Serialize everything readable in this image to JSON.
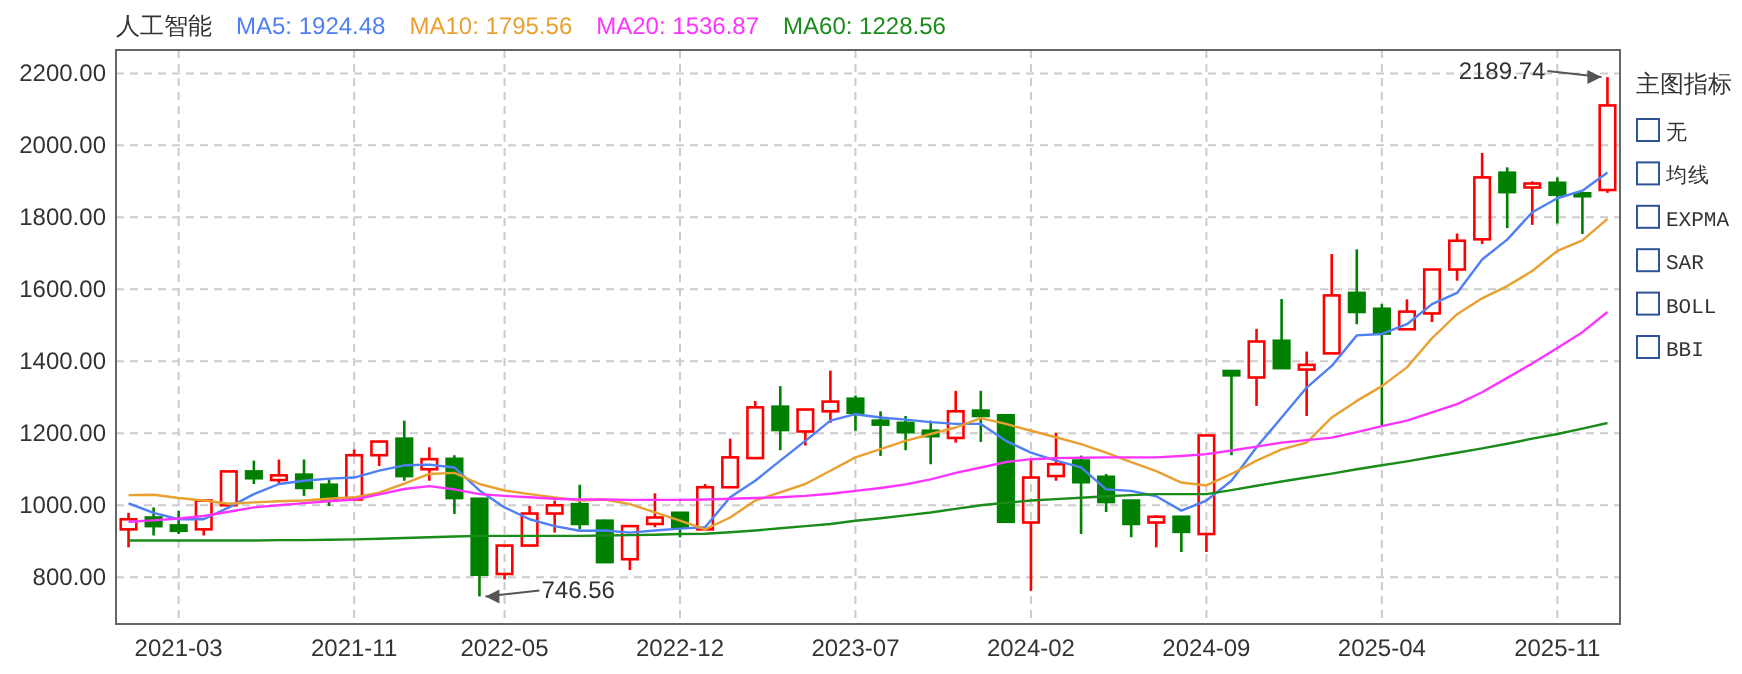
{
  "chart_data": [
    {
      "type": "candlestick",
      "title": "人工智能",
      "categories": [
        null,
        null,
        "2021-03",
        null,
        null,
        null,
        null,
        null,
        null,
        "2021-11",
        null,
        null,
        null,
        null,
        null,
        "2022-05",
        null,
        null,
        null,
        null,
        null,
        null,
        "2022-12",
        null,
        null,
        null,
        null,
        null,
        null,
        "2023-07",
        null,
        null,
        null,
        null,
        null,
        null,
        "2024-02",
        null,
        null,
        null,
        null,
        null,
        null,
        "2024-09",
        null,
        null,
        null,
        null,
        null,
        null,
        "2025-04",
        null,
        null,
        null,
        null,
        null,
        null,
        "2025-11",
        null,
        null
      ],
      "ohlc": [
        [
          933,
          979,
          883,
          961
        ],
        [
          966,
          994,
          916,
          942
        ],
        [
          944,
          985,
          920,
          929
        ],
        [
          933,
          1015,
          916,
          1013
        ],
        [
          1000,
          1094,
          994,
          1094
        ],
        [
          1094,
          1124,
          1059,
          1075
        ],
        [
          1070,
          1127,
          1061,
          1083
        ],
        [
          1085,
          1127,
          1026,
          1048
        ],
        [
          1057,
          1072,
          998,
          1016
        ],
        [
          1016,
          1155,
          1013,
          1139
        ],
        [
          1139,
          1177,
          1109,
          1177
        ],
        [
          1185,
          1235,
          1068,
          1081
        ],
        [
          1100,
          1161,
          1068,
          1128
        ],
        [
          1129,
          1139,
          976,
          1020
        ],
        [
          1018,
          1018,
          746.56,
          807
        ],
        [
          809,
          888,
          794,
          888
        ],
        [
          888,
          998,
          888,
          977
        ],
        [
          977,
          1013,
          924,
          1000
        ],
        [
          1003,
          1057,
          933,
          948
        ],
        [
          957,
          960,
          842,
          842
        ],
        [
          850,
          942,
          820,
          942
        ],
        [
          948,
          1033,
          939,
          966
        ],
        [
          979,
          979,
          911,
          939
        ],
        [
          933,
          1059,
          933,
          1050
        ],
        [
          1050,
          1185,
          1050,
          1133
        ],
        [
          1131,
          1290,
          1128,
          1272
        ],
        [
          1274,
          1331,
          1153,
          1209
        ],
        [
          1205,
          1266,
          1166,
          1266
        ],
        [
          1261,
          1374,
          1229,
          1288
        ],
        [
          1296,
          1305,
          1207,
          1257
        ],
        [
          1235,
          1261,
          1137,
          1224
        ],
        [
          1229,
          1248,
          1153,
          1203
        ],
        [
          1207,
          1235,
          1114,
          1192
        ],
        [
          1187,
          1318,
          1174,
          1261
        ],
        [
          1263,
          1318,
          1176,
          1248
        ],
        [
          1250,
          1253,
          954,
          954
        ],
        [
          952,
          1129,
          762,
          1077
        ],
        [
          1081,
          1201,
          1068,
          1114
        ],
        [
          1124,
          1138,
          920,
          1064
        ],
        [
          1079,
          1087,
          981,
          1009
        ],
        [
          1013,
          1013,
          911,
          948
        ],
        [
          952,
          972,
          883,
          968
        ],
        [
          968,
          968,
          870,
          926
        ],
        [
          920,
          1194,
          870,
          1194
        ],
        [
          1373,
          1373,
          1139,
          1361
        ],
        [
          1355,
          1490,
          1276,
          1455
        ],
        [
          1457,
          1573,
          1381,
          1381
        ],
        [
          1377,
          1427,
          1248,
          1390
        ],
        [
          1422,
          1698,
          1422,
          1583
        ],
        [
          1590,
          1711,
          1503,
          1537
        ],
        [
          1546,
          1559,
          1220,
          1477
        ],
        [
          1489,
          1572,
          1489,
          1538
        ],
        [
          1533,
          1655,
          1509,
          1655
        ],
        [
          1655,
          1755,
          1624,
          1735
        ],
        [
          1739,
          1979,
          1726,
          1911
        ],
        [
          1924,
          1939,
          1770,
          1870
        ],
        [
          1883,
          1900,
          1779,
          1894
        ],
        [
          1896,
          1911,
          1783,
          1863
        ],
        [
          1867,
          1867,
          1754,
          1865
        ],
        [
          1876,
          2189.74,
          1868,
          2111
        ]
      ],
      "colors": [
        "#ff0000",
        "#008000",
        "#008000",
        "#ff0000",
        "#ff0000",
        "#008000",
        "#ff0000",
        "#008000",
        "#008000",
        "#ff0000",
        "#ff0000",
        "#008000",
        "#ff0000",
        "#008000",
        "#008000",
        "#ff0000",
        "#ff0000",
        "#ff0000",
        "#008000",
        "#008000",
        "#ff0000",
        "#ff0000",
        "#008000",
        "#ff0000",
        "#ff0000",
        "#ff0000",
        "#008000",
        "#ff0000",
        "#ff0000",
        "#008000",
        "#008000",
        "#008000",
        "#008000",
        "#ff0000",
        "#008000",
        "#008000",
        "#ff0000",
        "#ff0000",
        "#008000",
        "#008000",
        "#008000",
        "#ff0000",
        "#008000",
        "#ff0000",
        "#008000",
        "#ff0000",
        "#008000",
        "#ff0000",
        "#ff0000",
        "#008000",
        "#008000",
        "#ff0000",
        "#ff0000",
        "#ff0000",
        "#ff0000",
        "#008000",
        "#ff0000",
        "#008000",
        "#008000",
        "#ff0000"
      ],
      "series": [
        {
          "type": "line",
          "name": "MA5: 1924.48",
          "color": "#4f7ff5",
          "values": [
            1005,
            979,
            961,
            961,
            994,
            1031,
            1059,
            1068,
            1074,
            1077,
            1096,
            1111,
            1113,
            1105,
            1041,
            994,
            961,
            942,
            929,
            930,
            924,
            930,
            935,
            939,
            1022,
            1068,
            1124,
            1179,
            1235,
            1253,
            1244,
            1238,
            1231,
            1226,
            1226,
            1179,
            1146,
            1124,
            1105,
            1044,
            1040,
            1025,
            985,
            1013,
            1068,
            1161,
            1244,
            1327,
            1387,
            1472,
            1476,
            1503,
            1559,
            1590,
            1683,
            1738,
            1814,
            1853,
            1874,
            1924.48
          ]
        },
        {
          "type": "line",
          "name": "MA10: 1795.56",
          "color": "#e8a030",
          "values": [
            1028,
            1029,
            1020,
            1013,
            1004,
            1008,
            1011,
            1013,
            1018,
            1022,
            1035,
            1060,
            1087,
            1090,
            1059,
            1041,
            1031,
            1022,
            1013,
            1016,
            1003,
            980,
            957,
            933,
            966,
            1013,
            1036,
            1059,
            1096,
            1133,
            1156,
            1179,
            1198,
            1216,
            1242,
            1226,
            1207,
            1189,
            1170,
            1146,
            1120,
            1095,
            1063,
            1055,
            1087,
            1124,
            1155,
            1174,
            1244,
            1290,
            1331,
            1383,
            1464,
            1531,
            1575,
            1609,
            1651,
            1707,
            1736,
            1795.56
          ]
        },
        {
          "type": "line",
          "name": "MA20: 1536.87",
          "color": "#ff33ff",
          "values": [
            954,
            958,
            963,
            970,
            982,
            994,
            1000,
            1006,
            1011,
            1016,
            1030,
            1045,
            1053,
            1044,
            1031,
            1026,
            1022,
            1018,
            1016,
            1016,
            1015,
            1015,
            1015,
            1016,
            1018,
            1020,
            1022,
            1026,
            1032,
            1040,
            1048,
            1058,
            1072,
            1090,
            1105,
            1120,
            1128,
            1131,
            1132,
            1133,
            1133,
            1133,
            1137,
            1142,
            1152,
            1163,
            1174,
            1181,
            1188,
            1203,
            1220,
            1235,
            1258,
            1281,
            1314,
            1354,
            1394,
            1437,
            1481,
            1536.87
          ]
        },
        {
          "type": "line",
          "name": "MA60: 1228.56",
          "color": "#1a8c1a",
          "values": [
            902,
            902,
            902,
            902,
            902,
            902,
            903,
            903,
            904,
            905,
            907,
            909,
            911,
            913,
            915,
            915,
            915,
            915,
            915,
            916,
            917,
            918,
            920,
            921,
            925,
            930,
            936,
            942,
            948,
            957,
            964,
            972,
            980,
            990,
            1000,
            1007,
            1013,
            1017,
            1021,
            1025,
            1028,
            1031,
            1031,
            1031,
            1042,
            1054,
            1066,
            1077,
            1088,
            1100,
            1111,
            1122,
            1134,
            1146,
            1158,
            1171,
            1185,
            1198,
            1213,
            1228.56
          ]
        }
      ],
      "ylim": [
        670,
        2265
      ],
      "yticks": [
        {
          "value": 800,
          "label": "800.00"
        },
        {
          "value": 1000,
          "label": "1000.00"
        },
        {
          "value": 1200,
          "label": "1200.00"
        },
        {
          "value": 1400,
          "label": "1400.00"
        },
        {
          "value": 1600,
          "label": "1600.00"
        },
        {
          "value": 1800,
          "label": "1800.00"
        },
        {
          "value": 2000,
          "label": "2000.00"
        },
        {
          "value": 2200,
          "label": "2200.00"
        }
      ],
      "grid": true,
      "legend": "top left",
      "annotations": [
        "2189.74",
        "746.56"
      ]
    },
    {
      "type": "other",
      "title": "主图指标",
      "annotations": [
        "无",
        "均线",
        "EXPMA",
        "SAR",
        "BOLL",
        "BBI"
      ]
    }
  ]
}
